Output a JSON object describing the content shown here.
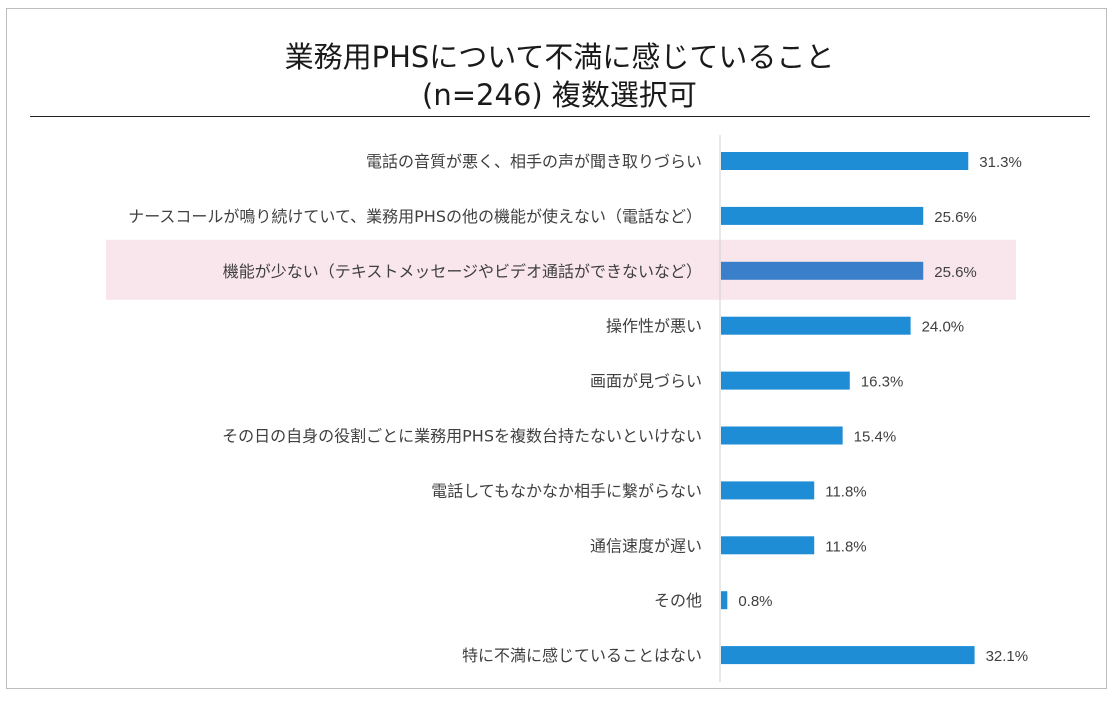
{
  "chart_data": {
    "type": "bar",
    "orientation": "horizontal",
    "title": "業務用PHSについて不満に感じていること",
    "subtitle": "(n=246) 複数選択可",
    "categories": [
      "電話の音質が悪く、相手の声が聞き取りづらい",
      "ナースコールが鳴り続けていて、業務用PHSの他の機能が使えない（電話など）",
      "機能が少ない（テキストメッセージやビデオ通話ができないなど）",
      "操作性が悪い",
      "画面が見づらい",
      "その日の自身の役割ごとに業務用PHSを複数台持たないといけない",
      "電話してもなかなか相手に繋がらない",
      "通信速度が遅い",
      "その他",
      "特に不満に感じていることはない"
    ],
    "values": [
      31.3,
      25.6,
      25.6,
      24.0,
      16.3,
      15.4,
      11.8,
      11.8,
      0.8,
      32.1
    ],
    "value_labels": [
      "31.3%",
      "25.6%",
      "25.6%",
      "24.0%",
      "16.3%",
      "15.4%",
      "11.8%",
      "11.8%",
      "0.8%",
      "32.1%"
    ],
    "highlighted_index": 2,
    "xlim": [
      0,
      40
    ],
    "grid": false,
    "legend": "none",
    "colors": {
      "bar": "#1f8dd6",
      "highlight_bar": "#3a7fc9",
      "highlight_band": "#f9e6ec"
    }
  }
}
